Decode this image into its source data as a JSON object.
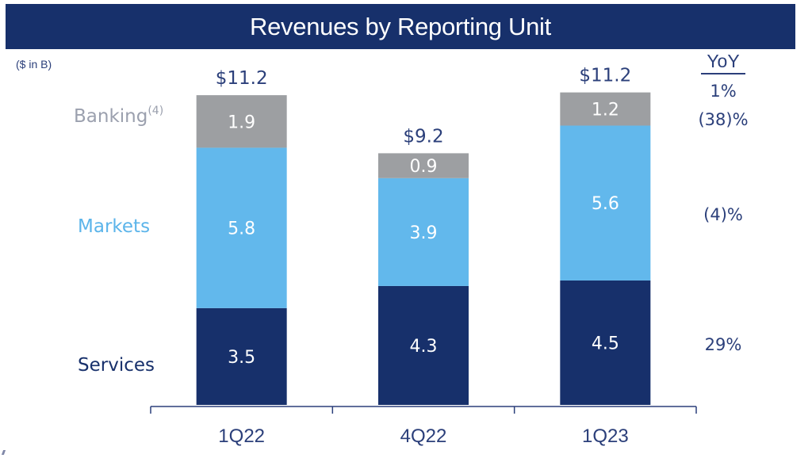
{
  "chart_data": {
    "type": "bar",
    "stacked": true,
    "title": "Revenues by Reporting Unit",
    "unit_note": "($ in B)",
    "categories": [
      "1Q22",
      "4Q22",
      "1Q23"
    ],
    "series": [
      {
        "name": "Services",
        "color": "#17306b",
        "label_color": "#17306b",
        "values": [
          3.5,
          4.3,
          4.5
        ],
        "yoy": "29%"
      },
      {
        "name": "Markets",
        "color": "#62b8ec",
        "label_color": "#5bb4ea",
        "values": [
          5.8,
          3.9,
          5.6
        ],
        "yoy": "(4)%"
      },
      {
        "name": "Banking",
        "footnote": "(4)",
        "color": "#9d9fa2",
        "label_color": "#9ba0ae",
        "values": [
          1.9,
          0.9,
          1.2
        ],
        "yoy": "(38)%"
      }
    ],
    "totals": [
      "$11.2",
      "$9.2",
      "$11.2"
    ],
    "segment_labels": [
      [
        "3.5",
        "5.8",
        "1.9"
      ],
      [
        "4.3",
        "3.9",
        "0.9"
      ],
      [
        "4.5",
        "5.6",
        "1.2"
      ]
    ],
    "yoy_header": "YoY",
    "total_yoy": "1%",
    "xlabel": "",
    "ylabel": "",
    "ylim": [
      0,
      11.2
    ],
    "grid": false,
    "legend": "left (inline category labels)"
  }
}
